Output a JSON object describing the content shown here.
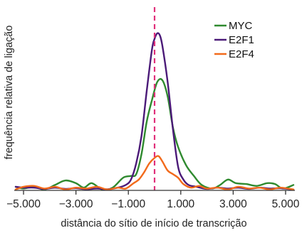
{
  "chart_data": {
    "type": "line",
    "xlabel": "distância do sítio de início de transcrição",
    "ylabel": "frequência relativa de ligação",
    "xlim": [
      -5300,
      5300
    ],
    "ylim": [
      0,
      1.0
    ],
    "x_ticks": [
      -5000,
      -3000,
      -1000,
      1000,
      3000,
      5000
    ],
    "x_tick_labels": [
      "−5.000",
      "−3.000",
      "−1.000",
      "1.000",
      "3.000",
      "5.000"
    ],
    "reference_line": {
      "x": 0,
      "style": "dashed",
      "color": "#e0307a"
    },
    "legend_position": "top-right",
    "grid": false,
    "series": [
      {
        "name": "MYC",
        "color": "#2f8a2f",
        "points": [
          [
            -5300,
            0.02
          ],
          [
            -5000,
            0.01
          ],
          [
            -4600,
            0.02
          ],
          [
            -4200,
            0.005
          ],
          [
            -3800,
            0.03
          ],
          [
            -3400,
            0.055
          ],
          [
            -3000,
            0.04
          ],
          [
            -2700,
            0.015
          ],
          [
            -2400,
            0.04
          ],
          [
            -2000,
            0.005
          ],
          [
            -1600,
            0.015
          ],
          [
            -1200,
            0.07
          ],
          [
            -900,
            0.08
          ],
          [
            -700,
            0.09
          ],
          [
            -500,
            0.2
          ],
          [
            -300,
            0.38
          ],
          [
            -100,
            0.5
          ],
          [
            100,
            0.6
          ],
          [
            300,
            0.61
          ],
          [
            500,
            0.52
          ],
          [
            700,
            0.35
          ],
          [
            900,
            0.24
          ],
          [
            1200,
            0.14
          ],
          [
            1500,
            0.08
          ],
          [
            1800,
            0.03
          ],
          [
            2200,
            0.01
          ],
          [
            2500,
            0.03
          ],
          [
            2800,
            0.06
          ],
          [
            3100,
            0.04
          ],
          [
            3500,
            0.035
          ],
          [
            3900,
            0.025
          ],
          [
            4300,
            0.04
          ],
          [
            4600,
            0.035
          ],
          [
            4900,
            0.01
          ],
          [
            5300,
            0.03
          ]
        ]
      },
      {
        "name": "E2F1",
        "color": "#4b1a78",
        "points": [
          [
            -5300,
            0.02
          ],
          [
            -5000,
            0.015
          ],
          [
            -4600,
            0.015
          ],
          [
            -4200,
            0.008
          ],
          [
            -3800,
            0.015
          ],
          [
            -3400,
            0.008
          ],
          [
            -3000,
            0.012
          ],
          [
            -2600,
            0.006
          ],
          [
            -2200,
            0.01
          ],
          [
            -1800,
            0.006
          ],
          [
            -1400,
            0.015
          ],
          [
            -1100,
            0.03
          ],
          [
            -900,
            0.06
          ],
          [
            -700,
            0.15
          ],
          [
            -500,
            0.3
          ],
          [
            -300,
            0.55
          ],
          [
            -100,
            0.78
          ],
          [
            0,
            0.84
          ],
          [
            100,
            0.87
          ],
          [
            200,
            0.86
          ],
          [
            300,
            0.8
          ],
          [
            500,
            0.6
          ],
          [
            700,
            0.34
          ],
          [
            900,
            0.13
          ],
          [
            1100,
            0.06
          ],
          [
            1300,
            0.03
          ],
          [
            1600,
            0.02
          ],
          [
            2000,
            0.008
          ],
          [
            2400,
            0.015
          ],
          [
            2800,
            0.01
          ],
          [
            3200,
            0.015
          ],
          [
            3600,
            0.008
          ],
          [
            4000,
            0.015
          ],
          [
            4400,
            0.01
          ],
          [
            4800,
            0.012
          ],
          [
            5300,
            0.004
          ]
        ]
      },
      {
        "name": "E2F4",
        "color": "#f26a1b",
        "points": [
          [
            -5300,
            0.005
          ],
          [
            -5000,
            0.02
          ],
          [
            -4600,
            0.025
          ],
          [
            -4200,
            0.01
          ],
          [
            -3800,
            0.02
          ],
          [
            -3400,
            0.005
          ],
          [
            -3000,
            0.015
          ],
          [
            -2600,
            0.01
          ],
          [
            -2200,
            0.02
          ],
          [
            -1800,
            0.005
          ],
          [
            -1400,
            0.015
          ],
          [
            -1100,
            0.01
          ],
          [
            -800,
            0.04
          ],
          [
            -600,
            0.06
          ],
          [
            -400,
            0.1
          ],
          [
            -200,
            0.15
          ],
          [
            0,
            0.18
          ],
          [
            150,
            0.19
          ],
          [
            300,
            0.16
          ],
          [
            500,
            0.11
          ],
          [
            700,
            0.09
          ],
          [
            900,
            0.07
          ],
          [
            1100,
            0.035
          ],
          [
            1400,
            0.015
          ],
          [
            1700,
            0.025
          ],
          [
            2000,
            0.01
          ],
          [
            2400,
            0.015
          ],
          [
            2800,
            0.005
          ],
          [
            3200,
            0.02
          ],
          [
            3600,
            0.01
          ],
          [
            4000,
            0.015
          ],
          [
            4400,
            0.005
          ],
          [
            4800,
            0.015
          ],
          [
            5300,
            0.005
          ]
        ]
      }
    ]
  }
}
